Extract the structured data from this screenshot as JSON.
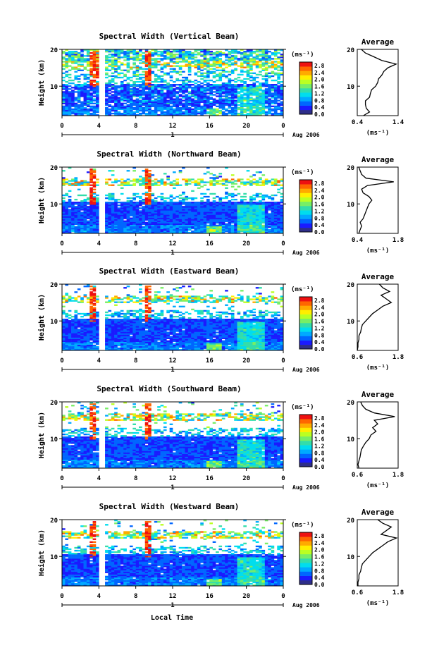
{
  "figure": {
    "xlabel": "Local Time",
    "date_label": "Aug 2006",
    "day_label": "1",
    "ylabel": "Height (km)",
    "cbar_unit": "(ms⁻¹)",
    "avg_unit": "(ms⁻¹)",
    "avg_title": "Average",
    "height_ticks": [
      "20",
      "10"
    ],
    "time_ticks": [
      "0",
      "4",
      "8",
      "12",
      "16",
      "20",
      "0"
    ],
    "colorbar_ticks": [
      "2.8",
      "2.4",
      "2.0",
      "1.6",
      "1.2",
      "0.8",
      "0.4",
      "0.0"
    ],
    "colors": {
      "white_band": "#ffffff",
      "background_blue": "#2f3fd0",
      "scale": [
        "#2e2e8a",
        "#1a1aff",
        "#0066ff",
        "#00aaff",
        "#00ddee",
        "#33ddaa",
        "#77ee66",
        "#bbff22",
        "#ffee00",
        "#ffaa00",
        "#ff6600",
        "#ee1111"
      ]
    }
  },
  "chart_data": [
    {
      "type": "heatmap",
      "title": "Spectral Width (Vertical Beam)",
      "xlabel": "Local Time",
      "ylabel": "Height (km)",
      "xlim": [
        0,
        24
      ],
      "ylim": [
        2,
        20
      ],
      "clim": [
        0.0,
        3.0
      ],
      "avg_profile": {
        "xlim": [
          0.4,
          1.4
        ],
        "xticks": [
          "0.4",
          "1.4"
        ],
        "yticks": [
          "20",
          "10"
        ],
        "height": [
          2,
          3,
          4,
          5,
          6,
          7,
          8,
          9,
          10,
          11,
          12,
          13,
          14,
          15,
          16,
          17,
          18,
          19,
          20
        ],
        "width": [
          0.55,
          0.7,
          0.62,
          0.6,
          0.6,
          0.7,
          0.72,
          0.75,
          0.85,
          0.9,
          0.92,
          1.0,
          1.05,
          1.15,
          1.35,
          1.0,
          0.8,
          0.6,
          0.5
        ]
      }
    },
    {
      "type": "heatmap",
      "title": "Spectral Width (Northward Beam)",
      "xlabel": "Local Time",
      "ylabel": "Height (km)",
      "xlim": [
        0,
        24
      ],
      "ylim": [
        2,
        20
      ],
      "clim": [
        0.0,
        3.0
      ],
      "avg_profile": {
        "xlim": [
          0.4,
          1.8
        ],
        "xticks": [
          "0.4",
          "1.8"
        ],
        "yticks": [
          "20",
          "10"
        ],
        "height": [
          2,
          3,
          4,
          5,
          6,
          7,
          8,
          9,
          10,
          11,
          12,
          13,
          14,
          15,
          16,
          17,
          18,
          19,
          20
        ],
        "width": [
          0.45,
          0.5,
          0.55,
          0.5,
          0.6,
          0.65,
          0.7,
          0.75,
          0.8,
          0.9,
          0.8,
          0.6,
          0.55,
          0.75,
          1.65,
          0.7,
          0.55,
          0.5,
          0.45
        ]
      }
    },
    {
      "type": "heatmap",
      "title": "Spectral Width (Eastward Beam)",
      "xlabel": "Local Time",
      "ylabel": "Height (km)",
      "xlim": [
        0,
        24
      ],
      "ylim": [
        2,
        20
      ],
      "clim": [
        0.0,
        3.0
      ],
      "avg_profile": {
        "xlim": [
          0.6,
          1.8
        ],
        "xticks": [
          "0.6",
          "1.8"
        ],
        "yticks": [
          "20",
          "10"
        ],
        "height": [
          2,
          3,
          4,
          5,
          6,
          7,
          8,
          9,
          10,
          11,
          12,
          13,
          14,
          15,
          16,
          17,
          18,
          19,
          20
        ],
        "width": [
          0.6,
          0.62,
          0.62,
          0.65,
          0.65,
          0.7,
          0.72,
          0.75,
          0.85,
          0.95,
          1.05,
          1.2,
          1.35,
          1.6,
          1.45,
          1.3,
          1.55,
          1.35,
          1.25
        ]
      }
    },
    {
      "type": "heatmap",
      "title": "Spectral Width (Southward Beam)",
      "xlabel": "Local Time",
      "ylabel": "Height (km)",
      "xlim": [
        0,
        24
      ],
      "ylim": [
        2,
        20
      ],
      "clim": [
        0.0,
        3.0
      ],
      "avg_profile": {
        "xlim": [
          0.6,
          1.8
        ],
        "xticks": [
          "0.6",
          "1.8"
        ],
        "yticks": [
          "20",
          "10"
        ],
        "height": [
          2,
          3,
          4,
          5,
          6,
          7,
          8,
          9,
          10,
          11,
          12,
          13,
          14,
          15,
          16,
          17,
          18,
          19,
          20
        ],
        "width": [
          0.65,
          0.62,
          0.65,
          0.68,
          0.7,
          0.72,
          0.78,
          0.85,
          0.95,
          1.0,
          1.15,
          1.05,
          1.2,
          1.1,
          1.7,
          1.1,
          0.85,
          0.75,
          0.7
        ]
      }
    },
    {
      "type": "heatmap",
      "title": "Spectral Width (Westward Beam)",
      "xlabel": "Local Time",
      "ylabel": "Height (km)",
      "xlim": [
        0,
        24
      ],
      "ylim": [
        2,
        20
      ],
      "clim": [
        0.0,
        3.0
      ],
      "avg_profile": {
        "xlim": [
          0.6,
          1.8
        ],
        "xticks": [
          "0.6",
          "1.8"
        ],
        "yticks": [
          "20",
          "10"
        ],
        "height": [
          2,
          3,
          4,
          5,
          6,
          7,
          8,
          9,
          10,
          11,
          12,
          13,
          14,
          15,
          16,
          17,
          18,
          19,
          20
        ],
        "width": [
          0.62,
          0.62,
          0.65,
          0.65,
          0.7,
          0.72,
          0.75,
          0.85,
          0.95,
          1.05,
          1.2,
          1.35,
          1.5,
          1.75,
          1.3,
          1.45,
          1.6,
          1.35,
          1.2
        ]
      }
    }
  ]
}
